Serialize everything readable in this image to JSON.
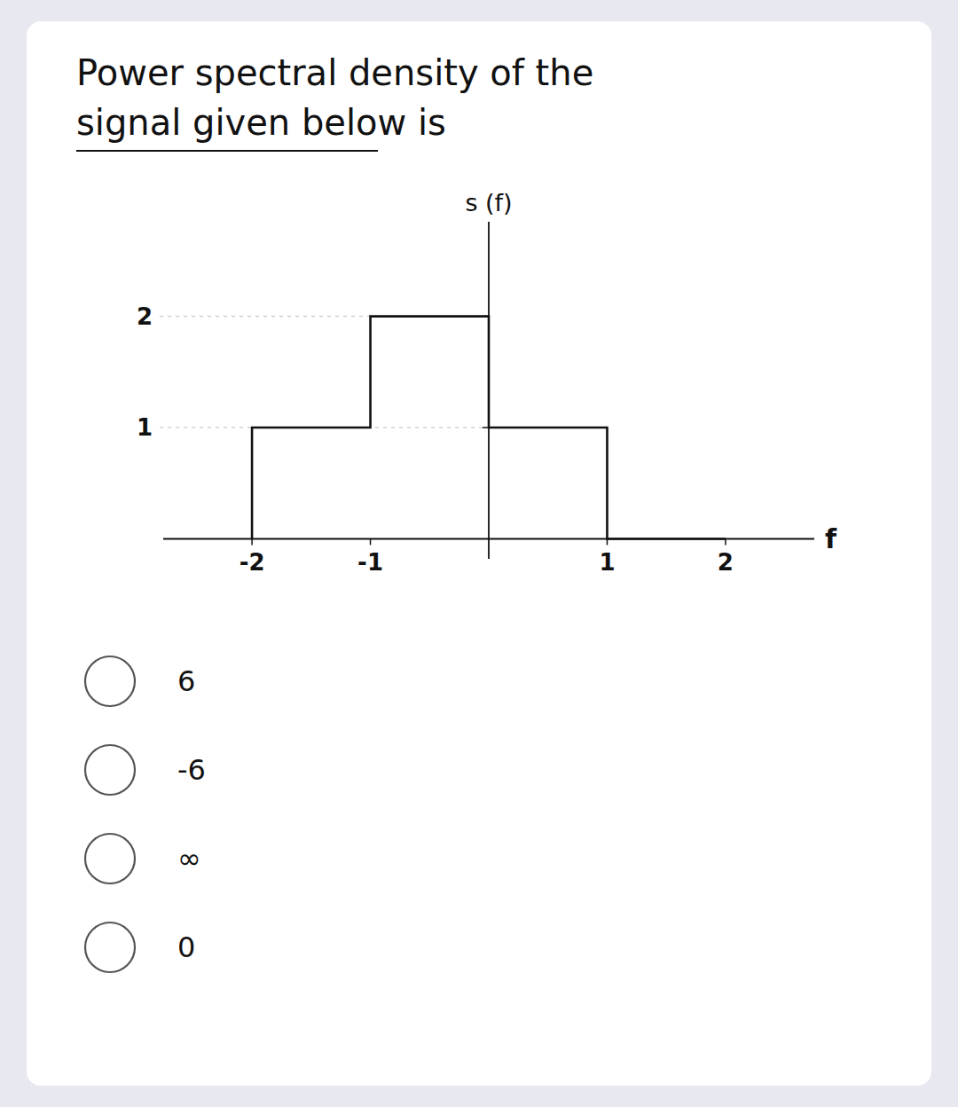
{
  "chart_data": {
    "type": "line",
    "title": "Power spectral density of the\nsignal given below is",
    "x_label": "f",
    "y_label": "s (f)",
    "x": [
      -2,
      -2,
      -1,
      -1,
      0,
      0,
      1,
      1,
      2,
      2
    ],
    "values": [
      0,
      1,
      1,
      2,
      2,
      1,
      1,
      0,
      0,
      0
    ],
    "color": "#111111",
    "xlim": [
      -2.75,
      2.75
    ],
    "ylim": [
      -0.18,
      2.85
    ],
    "xticks": [
      -2,
      -1,
      1,
      2
    ],
    "yticks": [
      2,
      1
    ],
    "grid": false,
    "annotations": [
      "6",
      "-6",
      "∞",
      "0"
    ]
  }
}
